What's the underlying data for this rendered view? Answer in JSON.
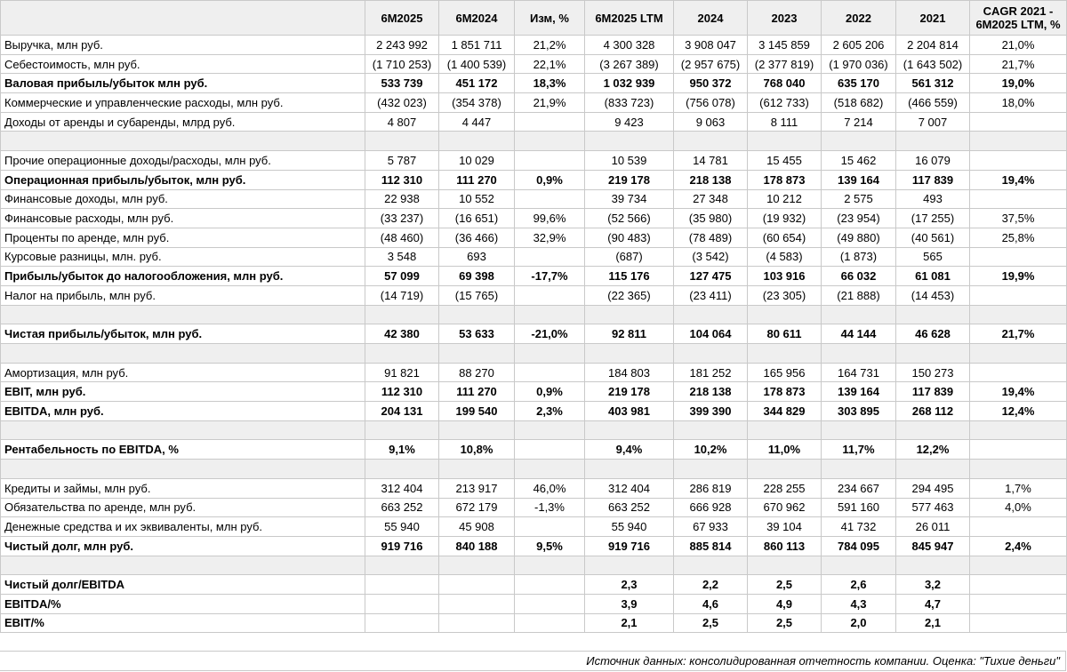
{
  "table": {
    "header": [
      null,
      "6M2025",
      "6M2024",
      "Изм, %",
      "6M2025 LTM",
      "2024",
      "2023",
      "2022",
      "2021",
      "CAGR 2021 - 6M2025 LTM, %"
    ],
    "rows": [
      {
        "cells": [
          "Выручка, млн руб.",
          "2 243 992",
          "1 851 711",
          "21,2%",
          "4 300 328",
          "3 908 047",
          "3 145 859",
          "2 605 206",
          "2 204 814",
          "21,0%"
        ]
      },
      {
        "cells": [
          "Себестоимость, млн руб.",
          "(1 710 253)",
          "(1 400 539)",
          "22,1%",
          "(3 267 389)",
          "(2 957 675)",
          "(2 377 819)",
          "(1 970 036)",
          "(1 643 502)",
          "21,7%"
        ]
      },
      {
        "cells": [
          "Валовая прибыль/убыток млн руб.",
          "533 739",
          "451 172",
          "18,3%",
          "1 032 939",
          "950 372",
          "768 040",
          "635 170",
          "561 312",
          "19,0%"
        ],
        "bold": true
      },
      {
        "cells": [
          "Коммерческие и управленческие расходы, млн руб.",
          "(432 023)",
          "(354 378)",
          "21,9%",
          "(833 723)",
          "(756 078)",
          "(612 733)",
          "(518 682)",
          "(466 559)",
          "18,0%"
        ]
      },
      {
        "cells": [
          "Доходы от аренды и субаренды, млрд руб.",
          "4 807",
          "4 447",
          null,
          "9 423",
          "9 063",
          "8 111",
          "7 214",
          "7 007",
          null
        ]
      },
      null,
      {
        "cells": [
          "Прочие операционные доходы/расходы, млн руб.",
          "5 787",
          "10 029",
          null,
          "10 539",
          "14 781",
          "15 455",
          "15 462",
          "16 079",
          null
        ]
      },
      {
        "cells": [
          "Операционная прибыль/убыток, млн руб.",
          "112 310",
          "111 270",
          "0,9%",
          "219 178",
          "218 138",
          "178 873",
          "139 164",
          "117 839",
          "19,4%"
        ],
        "bold": true
      },
      {
        "cells": [
          "Финансовые доходы, млн руб.",
          "22 938",
          "10 552",
          null,
          "39 734",
          "27 348",
          "10 212",
          "2 575",
          "493",
          null
        ]
      },
      {
        "cells": [
          "Финансовые расходы, млн руб.",
          "(33 237)",
          "(16 651)",
          "99,6%",
          "(52 566)",
          "(35 980)",
          "(19 932)",
          "(23 954)",
          "(17 255)",
          "37,5%"
        ]
      },
      {
        "cells": [
          "Проценты по аренде, млн руб.",
          "(48 460)",
          "(36 466)",
          "32,9%",
          "(90 483)",
          "(78 489)",
          "(60 654)",
          "(49 880)",
          "(40 561)",
          "25,8%"
        ]
      },
      {
        "cells": [
          "Курсовые разницы, млн. руб.",
          "3 548",
          "693",
          null,
          "(687)",
          "(3 542)",
          "(4 583)",
          "(1 873)",
          "565",
          null
        ]
      },
      {
        "cells": [
          "Прибыль/убыток до налогообложения, млн руб.",
          "57 099",
          "69 398",
          "-17,7%",
          "115 176",
          "127 475",
          "103 916",
          "66 032",
          "61 081",
          "19,9%"
        ],
        "bold": true
      },
      {
        "cells": [
          "Налог на прибыль, млн руб.",
          "(14 719)",
          "(15 765)",
          null,
          "(22 365)",
          "(23 411)",
          "(23 305)",
          "(21 888)",
          "(14 453)",
          null
        ]
      },
      null,
      {
        "cells": [
          "Чистая прибыль/убыток, млн руб.",
          "42 380",
          "53 633",
          "-21,0%",
          "92 811",
          "104 064",
          "80 611",
          "44 144",
          "46 628",
          "21,7%"
        ],
        "bold": true
      },
      null,
      {
        "cells": [
          "Амортизация, млн руб.",
          "91 821",
          "88 270",
          null,
          "184 803",
          "181 252",
          "165 956",
          "164 731",
          "150 273",
          null
        ]
      },
      {
        "cells": [
          "EBIT, млн руб.",
          "112 310",
          "111 270",
          "0,9%",
          "219 178",
          "218 138",
          "178 873",
          "139 164",
          "117 839",
          "19,4%"
        ],
        "bold": true
      },
      {
        "cells": [
          "EBITDA, млн руб.",
          "204 131",
          "199 540",
          "2,3%",
          "403 981",
          "399 390",
          "344 829",
          "303 895",
          "268 112",
          "12,4%"
        ],
        "bold": true
      },
      null,
      {
        "cells": [
          "Рентабельность по EBITDA, %",
          "9,1%",
          "10,8%",
          null,
          "9,4%",
          "10,2%",
          "11,0%",
          "11,7%",
          "12,2%",
          null
        ],
        "bold": true
      },
      null,
      {
        "cells": [
          "Кредиты и займы, млн руб.",
          "312 404",
          "213 917",
          "46,0%",
          "312 404",
          "286 819",
          "228 255",
          "234 667",
          "294 495",
          "1,7%"
        ]
      },
      {
        "cells": [
          "Обязательства по аренде, млн руб.",
          "663 252",
          "672 179",
          "-1,3%",
          "663 252",
          "666 928",
          "670 962",
          "591 160",
          "577 463",
          "4,0%"
        ]
      },
      {
        "cells": [
          "Денежные средства и их эквиваленты, млн руб.",
          "55 940",
          "45 908",
          null,
          "55 940",
          "67 933",
          "39 104",
          "41 732",
          "26 011",
          null
        ]
      },
      {
        "cells": [
          "Чистый долг, млн руб.",
          "919 716",
          "840 188",
          "9,5%",
          "919 716",
          "885 814",
          "860 113",
          "784 095",
          "845 947",
          "2,4%"
        ],
        "bold": true
      },
      null,
      {
        "cells": [
          "Чистый долг/EBITDA",
          null,
          null,
          null,
          "2,3",
          "2,2",
          "2,5",
          "2,6",
          "3,2",
          null
        ],
        "bold": true
      },
      {
        "cells": [
          "EBITDA/%",
          null,
          null,
          null,
          "3,9",
          "4,6",
          "4,9",
          "4,3",
          "4,7",
          null
        ],
        "bold": true
      },
      {
        "cells": [
          "EBIT/%",
          null,
          null,
          null,
          "2,1",
          "2,5",
          "2,5",
          "2,0",
          "2,1",
          null
        ],
        "bold": true
      }
    ]
  },
  "footer": "Источник данных: консолидированная отчетность компании. Оценка: \"Тихие деньги\""
}
